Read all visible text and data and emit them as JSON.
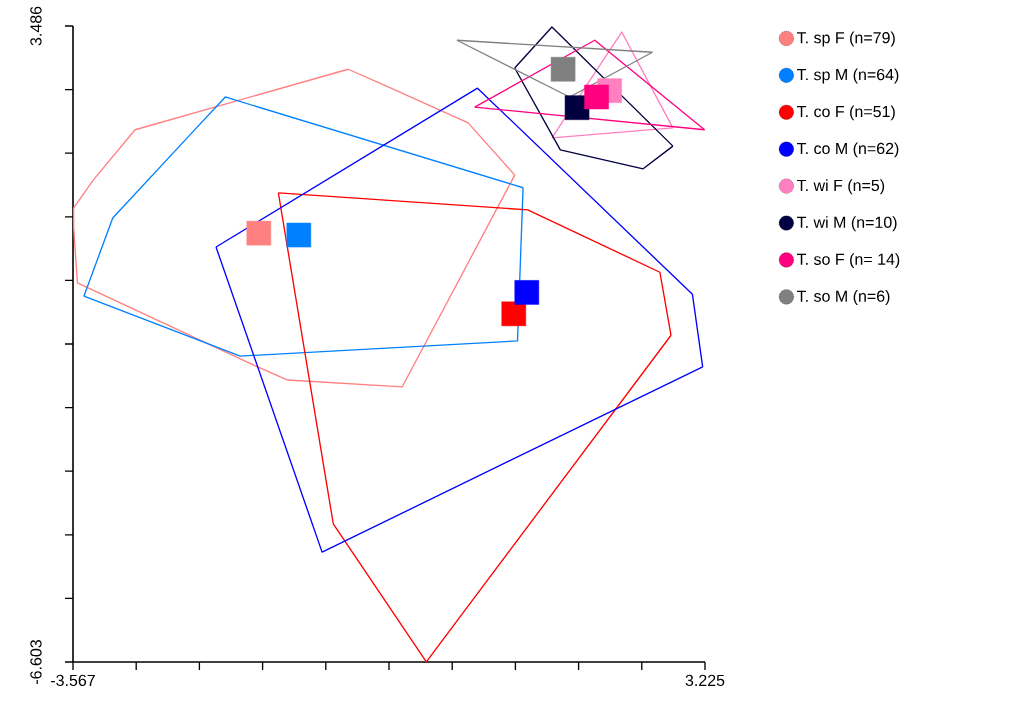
{
  "chart_data": {
    "type": "line",
    "marker": "none",
    "legend": "right",
    "grid": false,
    "xlim": [
      -3.567,
      3.225
    ],
    "ylim": [
      -6.603,
      3.486
    ],
    "xticks": [
      -3.567,
      {
        "value": -2.8878,
        "label": null
      },
      {
        "value": -2.2086,
        "label": null
      },
      {
        "value": -1.5294,
        "label": null
      },
      {
        "value": -0.8502,
        "label": null
      },
      {
        "value": -0.171,
        "label": null
      },
      {
        "value": 0.5082,
        "label": null
      },
      {
        "value": 1.1874,
        "label": null
      },
      {
        "value": 1.8666,
        "label": null
      },
      {
        "value": 2.5458,
        "label": null
      },
      3.225
    ],
    "yticks": [
      -6.603,
      {
        "value": -5.5941,
        "label": null
      },
      {
        "value": -4.5852,
        "label": null
      },
      {
        "value": -3.5763,
        "label": null
      },
      {
        "value": -2.5674,
        "label": null
      },
      {
        "value": -1.5585,
        "label": null
      },
      {
        "value": -0.5496,
        "label": null
      },
      {
        "value": 0.4593,
        "label": null
      },
      {
        "value": 1.4682,
        "label": null
      },
      {
        "value": 2.4771,
        "label": null
      },
      3.486
    ],
    "series": [
      {
        "color": "#ff8080",
        "x": [
          -3.56,
          -3.35,
          -2.9,
          -0.61,
          -0.27,
          0.68,
          1.18
        ],
        "values": [
          0.6,
          1.04,
          1.84,
          2.8,
          2.58,
          1.95,
          1.12
        ]
      },
      {
        "color": "#ff8080",
        "x": [
          -3.56,
          -3.56,
          -3.52,
          -1.63,
          -1.26,
          -0.03,
          1.18
        ],
        "values": [
          0.6,
          0.3,
          -0.59,
          -1.89,
          -2.13,
          -2.24,
          1.12
        ]
      },
      {
        "color": "#0080ff",
        "x": [
          -3.45,
          -3.14,
          -2.36,
          -1.93,
          1.27
        ],
        "values": [
          -0.8,
          0.44,
          1.68,
          2.36,
          0.92
        ]
      },
      {
        "color": "#0080ff",
        "x": [
          -3.45,
          -1.77,
          1.21,
          1.27
        ],
        "values": [
          -0.8,
          -1.75,
          -1.51,
          0.92
        ]
      },
      {
        "color": "#ff0000",
        "x": [
          -1.36,
          1.32,
          2.74,
          2.86
        ],
        "values": [
          0.84,
          0.57,
          -0.42,
          -1.42
        ]
      },
      {
        "color": "#ff0000",
        "x": [
          -1.36,
          -0.77,
          0.23,
          2.86
        ],
        "values": [
          0.84,
          -4.41,
          -6.6,
          -1.42
        ]
      },
      {
        "color": "#0000ff",
        "x": [
          -2.03,
          0.78,
          3.09,
          3.2
        ],
        "values": [
          -0.02,
          2.5,
          -0.77,
          -1.92
        ]
      },
      {
        "color": "#0000ff",
        "x": [
          -2.03,
          -0.89,
          3.2
        ],
        "values": [
          -0.02,
          -4.86,
          -1.92
        ]
      },
      {
        "color": "#ff80c0",
        "x": [
          1.58,
          2.33,
          2.88
        ],
        "values": [
          1.71,
          3.39,
          1.87
        ]
      },
      {
        "color": "#ff80c0",
        "x": [
          1.58,
          2.88
        ],
        "values": [
          1.71,
          1.87
        ]
      },
      {
        "color": "#000040",
        "x": [
          1.18,
          1.58,
          2.88
        ],
        "values": [
          2.82,
          3.47,
          1.58
        ]
      },
      {
        "color": "#000040",
        "x": [
          1.18,
          1.67,
          2.56,
          2.88
        ],
        "values": [
          2.82,
          1.52,
          1.22,
          1.58
        ]
      },
      {
        "color": "#ff0080",
        "x": [
          0.75,
          2.04,
          3.22
        ],
        "values": [
          2.2,
          3.26,
          1.84
        ]
      },
      {
        "color": "#ff0080",
        "x": [
          0.75,
          3.22
        ],
        "values": [
          2.2,
          1.84
        ]
      },
      {
        "color": "#808080",
        "x": [
          0.56,
          2.66
        ],
        "values": [
          3.26,
          3.07
        ]
      },
      {
        "color": "#808080",
        "x": [
          0.56,
          1.77,
          2.1,
          2.66
        ],
        "values": [
          3.26,
          2.36,
          null,
          3.07
        ]
      },
      {
        "type": "scatter",
        "marker": "square",
        "name": "T. sp F (n=79)",
        "color": "#ff8080",
        "x": [
          -1.57
        ],
        "values": [
          0.2
        ]
      },
      {
        "type": "scatter",
        "marker": "square",
        "name": "T. sp M (n=64)",
        "color": "#0080ff",
        "x": [
          -1.14
        ],
        "values": [
          0.17
        ]
      },
      {
        "type": "scatter",
        "marker": "square",
        "name": "T. co F (n=51)",
        "color": "#ff0000",
        "x": [
          1.17
        ],
        "values": [
          -1.08
        ]
      },
      {
        "type": "scatter",
        "marker": "square",
        "name": "T. co M (n=62)",
        "color": "#0000ff",
        "x": [
          1.31
        ],
        "values": [
          -0.74
        ]
      },
      {
        "type": "scatter",
        "marker": "square",
        "name": "T. wi F (n=5)",
        "color": "#ff80c0",
        "x": [
          2.2
        ],
        "values": [
          2.46
        ]
      },
      {
        "type": "scatter",
        "marker": "square",
        "name": "T. wi M (n=10)",
        "color": "#000040",
        "x": [
          1.85
        ],
        "values": [
          2.19
        ]
      },
      {
        "type": "scatter",
        "marker": "square",
        "name": "T. so F (n= 14)",
        "color": "#ff0080",
        "x": [
          2.06
        ],
        "values": [
          2.36
        ]
      },
      {
        "type": "scatter",
        "marker": "square",
        "name": "T. so M (n=6)",
        "color": "#808080",
        "x": [
          1.7
        ],
        "values": [
          2.8
        ]
      }
    ]
  }
}
